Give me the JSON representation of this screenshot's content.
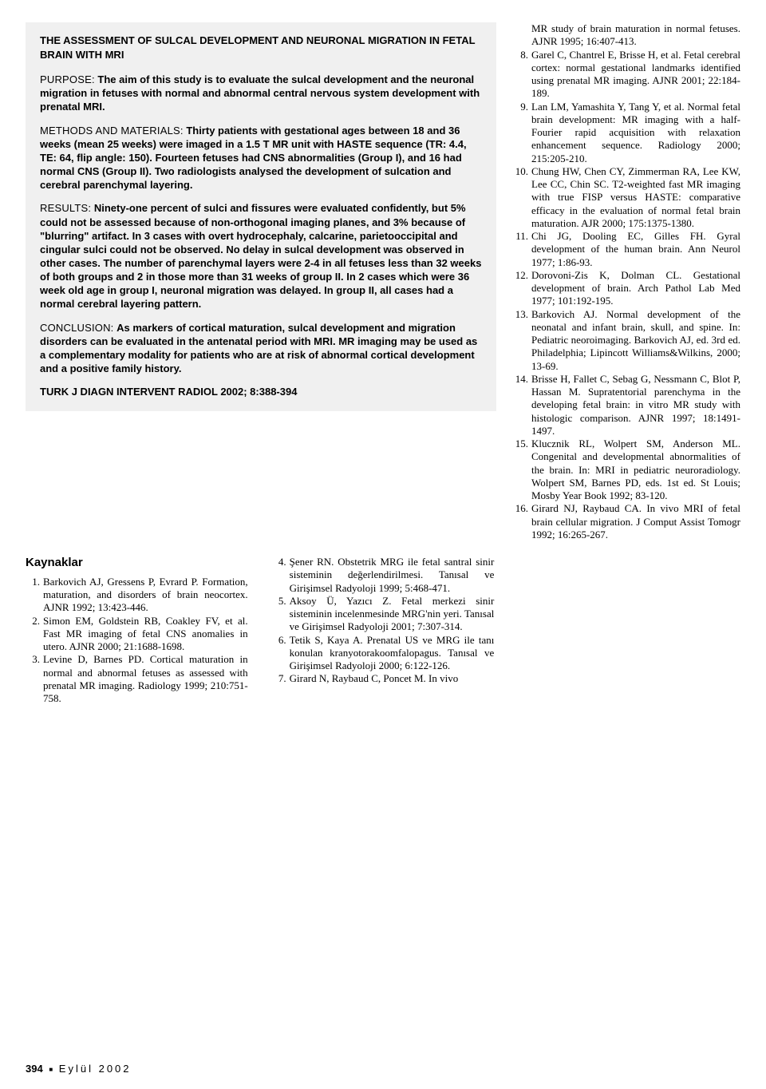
{
  "abstract": {
    "title": "THE ASSESSMENT OF SULCAL DEVELOPMENT AND NEURONAL MIGRATION IN FETAL BRAIN WITH MRI",
    "purpose_label": "PURPOSE:",
    "purpose_text": "The aim of this study is to evaluate the sulcal development and the neuronal migration in fetuses with normal and abnormal central nervous system development with prenatal MRI.",
    "methods_label": "METHODS AND MATERIALS:",
    "methods_text": "Thirty  patients with gestational ages between 18 and 36 weeks (mean 25 weeks) were imaged in a 1.5 T MR unit with HASTE sequence (TR: 4.4, TE: 64, flip angle: 150). Fourteen fetuses had CNS abnormalities (Group I), and 16 had normal CNS (Group II). Two radiologists analysed the development of sulcation and cerebral parenchymal layering.",
    "results_label": "RESULTS:",
    "results_text": "Ninety-one percent of sulci and fissures were evaluated confidently, but 5% could not be assessed because of non-orthogonal imaging planes, and 3% because of \"blurring\" artifact. In 3 cases with overt hydrocephaly, calcarine, parietooccipital and cingular sulci could not be observed. No delay in sulcal development was observed in other cases. The number of parenchymal layers were 2-4 in all fetuses less than 32 weeks of both groups and 2 in those more than 31 weeks of group II. In 2 cases which were 36 week old age in group I, neuronal migration was delayed. In group II, all cases had a normal cerebral layering pattern.",
    "conclusion_label": "CONCLUSION:",
    "conclusion_text": "As markers of cortical maturation, sulcal development and migration disorders can be evaluated in the antenatal period with MRI. MR imaging may be used as a complementary modality for patients who are at risk of abnormal cortical development and a positive family history.",
    "journal": "TURK J DIAGN INTERVENT RADIOL 2002; 8:388-394"
  },
  "refs_heading": "Kaynaklar",
  "refs_left": [
    {
      "n": "1.",
      "t": "Barkovich AJ, Gressens P, Evrard P. Formation, maturation, and disorders of brain neocortex. AJNR 1992; 13:423-446."
    },
    {
      "n": "2.",
      "t": "Simon EM, Goldstein RB, Coakley FV, et al. Fast MR imaging of fetal CNS anomalies in utero. AJNR 2000; 21:1688-1698."
    },
    {
      "n": "3.",
      "t": "Levine D, Barnes PD. Cortical maturation in normal and abnormal fetuses as assessed with prenatal MR imaging. Radiology 1999; 210:751-758."
    }
  ],
  "refs_mid": [
    {
      "n": "4.",
      "t": "Şener RN. Obstetrik MRG ile fetal santral sinir sisteminin değerlendirilmesi. Tanısal ve Girişimsel Radyoloji 1999; 5:468-471."
    },
    {
      "n": "5.",
      "t": "Aksoy Ü, Yazıcı Z. Fetal merkezi sinir sisteminin incelenmesinde MRG'nin yeri. Tanısal ve Girişimsel Radyoloji 2001; 7:307-314."
    },
    {
      "n": "6.",
      "t": "Tetik S, Kaya A. Prenatal US ve MRG ile tanı konulan kranyotorakoomfalopagus. Tanısal ve Girişimsel Radyoloji 2000; 6:122-126."
    },
    {
      "n": "7.",
      "t": "Girard N, Raybaud C, Poncet M. In vivo"
    }
  ],
  "refs_right": [
    {
      "n": "",
      "t": "MR study of brain maturation in normal fetuses. AJNR 1995; 16:407-413."
    },
    {
      "n": "8.",
      "t": "Garel C, Chantrel E, Brisse H, et al. Fetal cerebral cortex: normal gestational landmarks identified using prenatal MR imaging. AJNR 2001; 22:184-189."
    },
    {
      "n": "9.",
      "t": "Lan LM, Yamashita Y, Tang Y, et al. Normal fetal brain development: MR imaging with a half-Fourier rapid acquisition with relaxation enhancement sequence. Radiology 2000; 215:205-210."
    },
    {
      "n": "10.",
      "t": "Chung HW, Chen CY, Zimmerman RA, Lee KW, Lee CC, Chin SC. T2-weighted fast MR imaging with true FISP versus HASTE: comparative efficacy in the evaluation of normal fetal brain maturation. AJR 2000; 175:1375-1380."
    },
    {
      "n": "11.",
      "t": "Chi JG, Dooling EC, Gilles FH. Gyral development of the human brain. Ann Neurol 1977; 1:86-93."
    },
    {
      "n": "12.",
      "t": "Dorovoni-Zis K, Dolman CL. Gestational development of brain. Arch Pathol Lab Med 1977; 101:192-195."
    },
    {
      "n": "13.",
      "t": "Barkovich AJ. Normal development of the neonatal and infant brain, skull, and spine. In: Pediatric neoroimaging. Barkovich AJ, ed. 3rd ed. Philadelphia; Lipincott Williams&Wilkins, 2000; 13-69."
    },
    {
      "n": "14.",
      "t": "Brisse H, Fallet C, Sebag G, Nessmann C, Blot P, Hassan M. Supratentorial parenchyma in the developing fetal brain: in vitro MR study with histologic comparison. AJNR 1997; 18:1491-1497."
    },
    {
      "n": "15.",
      "t": "Klucznik RL, Wolpert SM, Anderson ML. Congenital and developmental abnormalities of the brain. In: MRI in pediatric neuroradiology. Wolpert SM, Barnes PD, eds. 1st ed. St Louis; Mosby Year Book 1992; 83-120."
    },
    {
      "n": "16.",
      "t": "Girard NJ, Raybaud CA. In vivo MRI of fetal brain cellular migration. J Comput Assist Tomogr 1992; 16:265-267."
    }
  ],
  "footer": {
    "page": "394",
    "date": "Eylül 2002"
  }
}
